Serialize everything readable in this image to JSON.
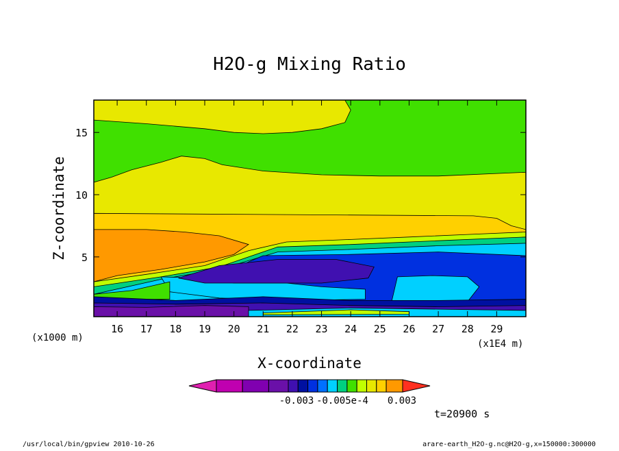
{
  "chart_data": {
    "type": "heatmap",
    "title": "H2O-g Mixing Ratio",
    "xlabel": "X-coordinate",
    "ylabel": "Z-coordinate",
    "x_unit": "(x1E4 m)",
    "y_unit": "(x1000 m)",
    "xlim": [
      15.2,
      30.0
    ],
    "ylim": [
      0.2,
      17.6
    ],
    "x_ticks": [
      16,
      17,
      18,
      19,
      20,
      21,
      22,
      23,
      24,
      25,
      26,
      27,
      28,
      29
    ],
    "y_ticks": [
      5,
      10,
      15
    ],
    "time_label": "t=20900 s",
    "colorbar": {
      "colors": [
        "#e020b0",
        "#c000b0",
        "#8000b0",
        "#6a10a8",
        "#4010b0",
        "#0010a0",
        "#0030e0",
        "#0070ff",
        "#00d0ff",
        "#00d080",
        "#40e000",
        "#c0ff00",
        "#e8e800",
        "#ffd000",
        "#ff9900",
        "#ff3020"
      ],
      "labels": [
        "-0.003",
        "-0.005e-4",
        "0.003"
      ]
    },
    "layers": [
      {
        "color": "#e8e800",
        "points": [
          [
            15.2,
            17.6
          ],
          [
            30,
            17.6
          ],
          [
            30,
            0.2
          ],
          [
            15.2,
            0.2
          ]
        ]
      },
      {
        "color": "#40e000",
        "points": [
          [
            15.2,
            16.0
          ],
          [
            17,
            15.7
          ],
          [
            19,
            15.3
          ],
          [
            20,
            15.0
          ],
          [
            21,
            14.9
          ],
          [
            22,
            15.0
          ],
          [
            23,
            15.3
          ],
          [
            23.8,
            15.8
          ],
          [
            24.0,
            16.8
          ],
          [
            23.8,
            17.6
          ],
          [
            30,
            17.6
          ],
          [
            30,
            11.8
          ],
          [
            27,
            11.5
          ],
          [
            25,
            11.5
          ],
          [
            23,
            11.6
          ],
          [
            21,
            11.9
          ],
          [
            19.6,
            12.4
          ],
          [
            19,
            12.9
          ],
          [
            18.2,
            13.1
          ],
          [
            17.5,
            12.6
          ],
          [
            16.5,
            12.0
          ],
          [
            15.8,
            11.4
          ],
          [
            15.2,
            11.0
          ]
        ]
      },
      {
        "color": "#ffd000",
        "points": [
          [
            15.2,
            8.5
          ],
          [
            28.2,
            8.3
          ],
          [
            29,
            8.1
          ],
          [
            29.5,
            7.5
          ],
          [
            30,
            7.2
          ],
          [
            30,
            0.2
          ],
          [
            15.2,
            0.2
          ]
        ]
      },
      {
        "color": "#ff9900",
        "points": [
          [
            15.2,
            7.2
          ],
          [
            17.0,
            7.2
          ],
          [
            18.3,
            7.0
          ],
          [
            19.5,
            6.7
          ],
          [
            20.5,
            6.0
          ],
          [
            20.0,
            5.2
          ],
          [
            19.0,
            4.6
          ],
          [
            17.5,
            4.0
          ],
          [
            16.0,
            3.5
          ],
          [
            15.2,
            3.0
          ]
        ]
      },
      {
        "color": "#c0ff00",
        "points": [
          [
            15.2,
            3.0
          ],
          [
            17.0,
            3.6
          ],
          [
            19.0,
            4.3
          ],
          [
            20.5,
            5.5
          ],
          [
            21.8,
            6.2
          ],
          [
            24,
            6.4
          ],
          [
            26,
            6.6
          ],
          [
            28,
            6.8
          ],
          [
            30,
            7.0
          ],
          [
            30,
            0.2
          ],
          [
            15.2,
            0.2
          ]
        ]
      },
      {
        "color": "#00d080",
        "points": [
          [
            15.2,
            2.6
          ],
          [
            17.5,
            3.4
          ],
          [
            19.5,
            4.2
          ],
          [
            21.5,
            5.8
          ],
          [
            24,
            6.0
          ],
          [
            27,
            6.3
          ],
          [
            30,
            6.6
          ],
          [
            30,
            0.2
          ],
          [
            15.2,
            0.2
          ]
        ]
      },
      {
        "color": "#00d0ff",
        "points": [
          [
            15.2,
            2.0
          ],
          [
            17.5,
            3.2
          ],
          [
            19.5,
            4.0
          ],
          [
            21.5,
            5.4
          ],
          [
            24,
            5.6
          ],
          [
            27,
            5.9
          ],
          [
            30,
            6.1
          ],
          [
            30,
            0.2
          ],
          [
            15.2,
            0.2
          ]
        ]
      },
      {
        "color": "#0030e0",
        "points": [
          [
            19.5,
            3.6
          ],
          [
            21.0,
            5.1
          ],
          [
            24,
            5.2
          ],
          [
            27,
            5.4
          ],
          [
            30,
            5.1
          ],
          [
            30,
            0.4
          ],
          [
            26,
            0.4
          ],
          [
            24,
            0.8
          ],
          [
            22,
            1.5
          ],
          [
            20,
            2.0
          ]
        ]
      },
      {
        "color": "#00d0ff",
        "points": [
          [
            25.6,
            3.4
          ],
          [
            26.8,
            3.5
          ],
          [
            28,
            3.4
          ],
          [
            28.4,
            2.6
          ],
          [
            28.0,
            1.4
          ],
          [
            26.5,
            1.2
          ],
          [
            25.4,
            1.4
          ]
        ]
      },
      {
        "color": "#00d0ff",
        "points": [
          [
            17.5,
            3.4
          ],
          [
            18.8,
            3.3
          ],
          [
            20.0,
            2.9
          ],
          [
            21.8,
            2.9
          ],
          [
            23.0,
            2.6
          ],
          [
            24.5,
            2.4
          ],
          [
            24.5,
            1.6
          ],
          [
            22.0,
            1.5
          ],
          [
            19.5,
            1.7
          ],
          [
            17.8,
            2.2
          ]
        ]
      },
      {
        "color": "#4010b0",
        "points": [
          [
            18.1,
            3.3
          ],
          [
            19.5,
            4.3
          ],
          [
            21.5,
            4.8
          ],
          [
            23.5,
            4.8
          ],
          [
            24.8,
            4.2
          ],
          [
            24.6,
            3.3
          ],
          [
            23,
            2.9
          ],
          [
            21,
            2.9
          ],
          [
            19,
            2.9
          ]
        ]
      },
      {
        "color": "#40e000",
        "points": [
          [
            15.2,
            2.0
          ],
          [
            16.5,
            2.3
          ],
          [
            17.8,
            3.0
          ],
          [
            17.8,
            1.6
          ],
          [
            15.2,
            1.6
          ]
        ]
      },
      {
        "color": "#0010a0",
        "points": [
          [
            15.2,
            1.8
          ],
          [
            18,
            1.5
          ],
          [
            21,
            1.8
          ],
          [
            24,
            1.5
          ],
          [
            27,
            1.5
          ],
          [
            30,
            1.6
          ],
          [
            30,
            0.8
          ],
          [
            27,
            0.9
          ],
          [
            24,
            1.0
          ],
          [
            21,
            0.9
          ],
          [
            18,
            1.0
          ],
          [
            15.2,
            1.0
          ]
        ]
      },
      {
        "color": "#4010b0",
        "points": [
          [
            15.2,
            1.3
          ],
          [
            18,
            1.2
          ],
          [
            21,
            1.3
          ],
          [
            24,
            1.1
          ],
          [
            27,
            1.0
          ],
          [
            30,
            1.1
          ],
          [
            30,
            0.6
          ],
          [
            15.2,
            0.6
          ]
        ]
      },
      {
        "color": "#6a10a8",
        "points": [
          [
            15.2,
            1.0
          ],
          [
            17,
            0.95
          ],
          [
            19,
            1.1
          ],
          [
            20.5,
            1.0
          ],
          [
            20.5,
            0.2
          ],
          [
            15.2,
            0.2
          ]
        ]
      },
      {
        "color": "#00d0ff",
        "points": [
          [
            20.5,
            0.7
          ],
          [
            24,
            0.9
          ],
          [
            27,
            0.8
          ],
          [
            30,
            0.7
          ],
          [
            30,
            0.2
          ],
          [
            20.5,
            0.2
          ]
        ]
      },
      {
        "color": "#c0ff00",
        "points": [
          [
            21,
            0.5
          ],
          [
            24,
            0.75
          ],
          [
            26,
            0.6
          ],
          [
            26,
            0.4
          ],
          [
            21,
            0.35
          ]
        ]
      }
    ]
  },
  "footer": {
    "left": "/usr/local/bin/gpview  2010-10-26",
    "right": "arare-earth_H2O-g.nc@H2O-g,x=150000:300000"
  }
}
